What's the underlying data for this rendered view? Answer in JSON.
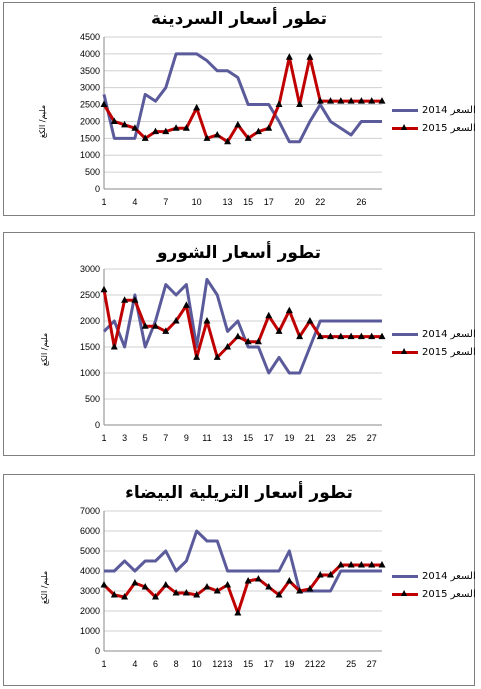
{
  "charts": [
    {
      "title": "تطور أسعار السردينة",
      "ylabel": "مليم/ الكغ",
      "chart_data": {
        "type": "line",
        "title": "تطور أسعار السردينة",
        "ylabel": "مليم/ الكغ",
        "xlabel": "",
        "ylim": [
          0,
          4500
        ],
        "yticks": [
          0,
          500,
          1000,
          1500,
          2000,
          2500,
          3000,
          3500,
          4000,
          4500
        ],
        "x": [
          1,
          2,
          3,
          4,
          5,
          6,
          7,
          8,
          9,
          10,
          11,
          12,
          13,
          14,
          15,
          16,
          17,
          18,
          19,
          20,
          21,
          22,
          23,
          24,
          25,
          26,
          27,
          28
        ],
        "xticks": [
          1,
          4,
          7,
          10,
          13,
          15,
          17,
          20,
          22,
          26
        ],
        "grid": true,
        "legend_position": "right",
        "series": [
          {
            "name": "السعر 2014",
            "color": "#5B5B9C",
            "marker": "none",
            "values": [
              2800,
              1500,
              1500,
              1500,
              2800,
              2600,
              3000,
              4000,
              4000,
              4000,
              3800,
              3500,
              3500,
              3300,
              2500,
              2500,
              2500,
              2000,
              1400,
              1400,
              2000,
              2500,
              2000,
              1800,
              1600,
              2000,
              2000,
              2000
            ]
          },
          {
            "name": "السعر 2015",
            "color": "#C00000",
            "marker": "triangle",
            "values": [
              2500,
              2000,
              1900,
              1800,
              1500,
              1700,
              1700,
              1800,
              1800,
              2400,
              1500,
              1600,
              1400,
              1900,
              1500,
              1700,
              1800,
              2500,
              3900,
              2500,
              3900,
              2600,
              2600,
              2600,
              2600,
              2600,
              2600,
              2600
            ]
          }
        ]
      }
    },
    {
      "title": "تطور أسعار الشورو",
      "ylabel": "مليم/ الكغ",
      "chart_data": {
        "type": "line",
        "title": "تطور أسعار الشورو",
        "ylabel": "مليم/ الكغ",
        "xlabel": "",
        "ylim": [
          0,
          3000
        ],
        "yticks": [
          0,
          500,
          1000,
          1500,
          2000,
          2500,
          3000
        ],
        "x": [
          1,
          2,
          3,
          4,
          5,
          6,
          7,
          8,
          9,
          10,
          11,
          12,
          13,
          14,
          15,
          16,
          17,
          18,
          19,
          20,
          21,
          22,
          23,
          24,
          25,
          26,
          27,
          28
        ],
        "xticks": [
          1,
          3,
          5,
          7,
          9,
          11,
          13,
          15,
          17,
          19,
          21,
          23,
          25,
          27
        ],
        "grid": true,
        "legend_position": "right",
        "series": [
          {
            "name": "السعر 2014",
            "color": "#5B5B9C",
            "marker": "none",
            "values": [
              1800,
              2000,
              1500,
              2500,
              1500,
              2000,
              2700,
              2500,
              2700,
              1500,
              2800,
              2500,
              1800,
              2000,
              1500,
              1500,
              1000,
              1300,
              1000,
              1000,
              1500,
              2000,
              2000,
              2000,
              2000,
              2000,
              2000,
              2000
            ]
          },
          {
            "name": "السعر 2015",
            "color": "#C00000",
            "marker": "triangle",
            "values": [
              2600,
              1500,
              2400,
              2400,
              1900,
              1900,
              1800,
              2000,
              2300,
              1300,
              2000,
              1300,
              1500,
              1700,
              1600,
              1600,
              2100,
              1800,
              2200,
              1700,
              2000,
              1700,
              1700,
              1700,
              1700,
              1700,
              1700,
              1700
            ]
          }
        ]
      }
    },
    {
      "title": "تطور أسعار التريلية البيضاء",
      "ylabel": "مليم/ الكغ",
      "chart_data": {
        "type": "line",
        "title": "تطور أسعار التريلية البيضاء",
        "ylabel": "مليم/ الكغ",
        "xlabel": "",
        "ylim": [
          0,
          7000
        ],
        "yticks": [
          0,
          1000,
          2000,
          3000,
          4000,
          5000,
          6000,
          7000
        ],
        "x": [
          1,
          2,
          3,
          4,
          5,
          6,
          7,
          8,
          9,
          10,
          11,
          12,
          13,
          14,
          15,
          16,
          17,
          18,
          19,
          20,
          21,
          22,
          23,
          24,
          25,
          26,
          27,
          28
        ],
        "xticks": [
          1,
          4,
          6,
          8,
          10,
          12,
          13,
          15,
          17,
          19,
          21,
          22,
          25,
          27
        ],
        "grid": true,
        "legend_position": "right",
        "series": [
          {
            "name": "السعر 2014",
            "color": "#5B5B9C",
            "marker": "none",
            "values": [
              4000,
              4000,
              4500,
              4000,
              4500,
              4500,
              5000,
              4000,
              4500,
              6000,
              5500,
              5500,
              4000,
              4000,
              4000,
              4000,
              4000,
              4000,
              5000,
              3000,
              3000,
              3000,
              3000,
              4000,
              4000,
              4000,
              4000,
              4000
            ]
          },
          {
            "name": "السعر 2015",
            "color": "#C00000",
            "marker": "triangle",
            "values": [
              3300,
              2800,
              2700,
              3400,
              3200,
              2700,
              3300,
              2900,
              2900,
              2800,
              3200,
              3000,
              3300,
              1900,
              3500,
              3600,
              3200,
              2800,
              3500,
              3000,
              3100,
              3800,
              3800,
              4300,
              4300,
              4300,
              4300,
              4300
            ]
          }
        ]
      }
    }
  ]
}
